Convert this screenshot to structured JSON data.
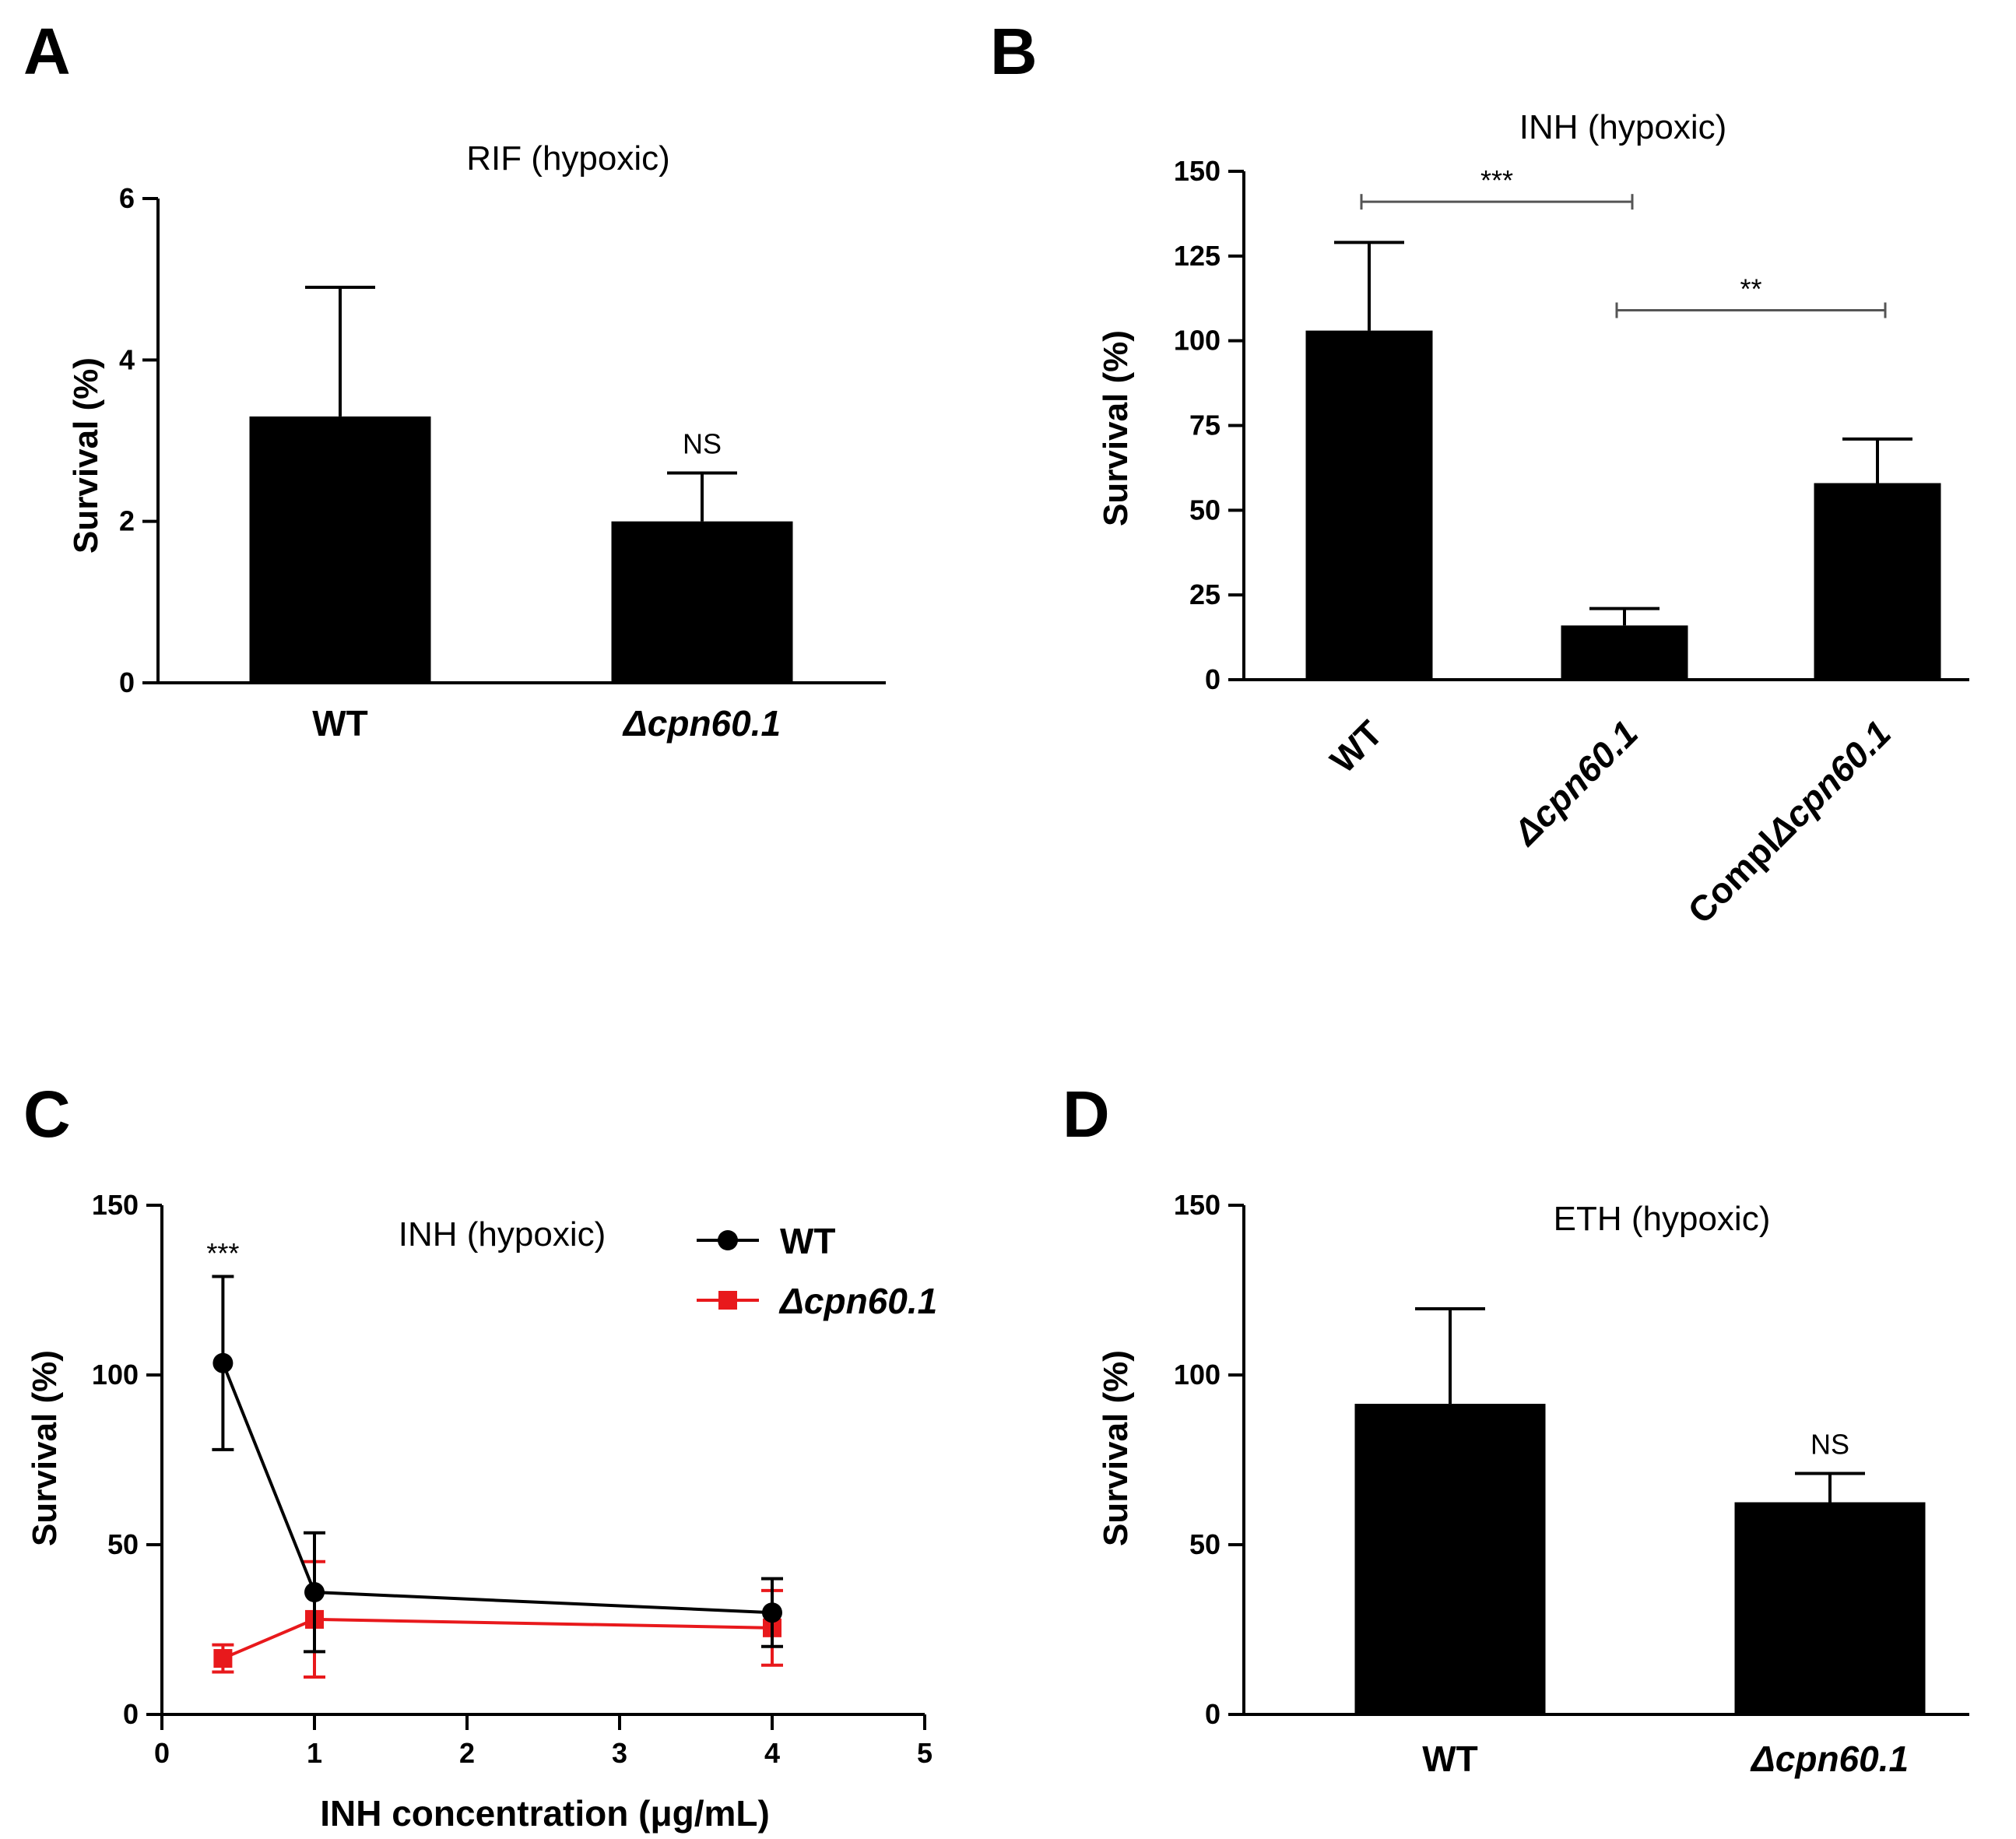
{
  "chart_data": [
    {
      "panel": "A",
      "type": "bar",
      "title": "RIF (hypoxic)",
      "ylabel": "Survival (%)",
      "xlabel": "",
      "ylim": [
        0,
        6
      ],
      "yticks": [
        "0",
        "2",
        "4",
        "6"
      ],
      "categories": [
        "WT",
        "Δcpn60.1"
      ],
      "values": [
        3.3,
        2.0
      ],
      "errors": [
        1.6,
        0.6
      ],
      "annotations": [
        {
          "category_index": 1,
          "text": "NS"
        }
      ]
    },
    {
      "panel": "B",
      "type": "bar",
      "title": "INH (hypoxic)",
      "ylabel": "Survival (%)",
      "xlabel": "",
      "ylim": [
        0,
        150
      ],
      "yticks": [
        "0",
        "25",
        "50",
        "75",
        "100",
        "125",
        "150"
      ],
      "categories": [
        "WT",
        "Δcpn60.1",
        "ComplΔcpn60.1"
      ],
      "values": [
        103,
        16,
        58
      ],
      "errors": [
        26,
        5,
        13
      ],
      "significance": [
        {
          "from": 0,
          "to": 1,
          "y": 141,
          "text": "***"
        },
        {
          "from": 1,
          "to": 2,
          "y": 109,
          "text": "**"
        }
      ]
    },
    {
      "panel": "C",
      "type": "line",
      "title": "INH (hypoxic)",
      "ylabel": "Survival (%)",
      "xlabel": "INH concentration (μg/mL)",
      "xlim": [
        0,
        5
      ],
      "ylim": [
        0,
        150
      ],
      "xticks": [
        "0",
        "1",
        "2",
        "3",
        "4",
        "5"
      ],
      "yticks": [
        "0",
        "50",
        "100",
        "150"
      ],
      "series": [
        {
          "name": "WT",
          "color": "#000000",
          "marker": "circle",
          "x": [
            0.4,
            1,
            4
          ],
          "y": [
            103.5,
            36,
            30
          ],
          "errors": [
            25.5,
            17.5,
            10
          ]
        },
        {
          "name": "Δcpn60.1",
          "color": "#e8191c",
          "marker": "square",
          "x": [
            0.4,
            1,
            4
          ],
          "y": [
            16.5,
            28,
            25.5
          ],
          "errors": [
            4,
            17,
            11
          ]
        }
      ],
      "annotations": [
        {
          "x": 0.4,
          "y": 133,
          "text": "***"
        }
      ],
      "legend_position": "top-right"
    },
    {
      "panel": "D",
      "type": "bar",
      "title": "ETH (hypoxic)",
      "ylabel": "Survival (%)",
      "xlabel": "",
      "ylim": [
        0,
        150
      ],
      "yticks": [
        "0",
        "50",
        "100",
        "150"
      ],
      "categories": [
        "WT",
        "Δcpn60.1"
      ],
      "values": [
        91.5,
        62.5
      ],
      "errors": [
        28,
        8.5
      ],
      "annotations": [
        {
          "category_index": 1,
          "text": "NS"
        }
      ]
    }
  ]
}
